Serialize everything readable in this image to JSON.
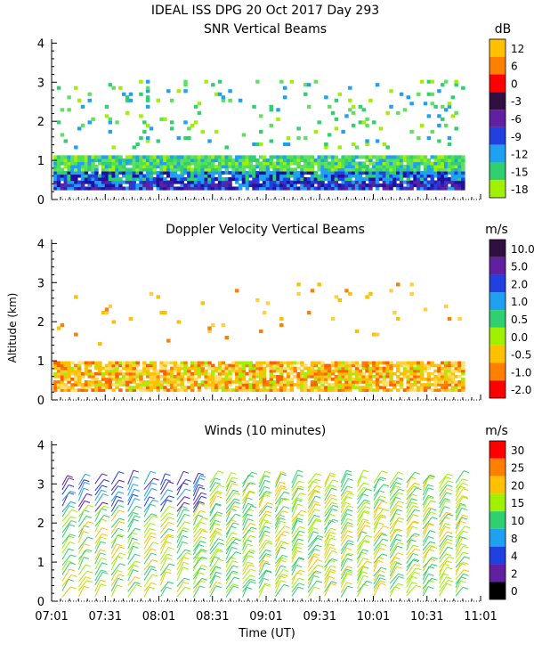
{
  "header": {
    "title": "IDEAL ISS DPG  20 Oct 2017 Day 293"
  },
  "x_axis": {
    "label": "Time (UT)",
    "ticks": [
      "07:01",
      "07:31",
      "08:01",
      "08:31",
      "09:01",
      "09:31",
      "10:01",
      "10:31",
      "11:01"
    ]
  },
  "chart_data": [
    {
      "type": "heatmap",
      "id": "snr",
      "title": "SNR Vertical Beams",
      "ylabel": "",
      "yticks": [
        "0",
        "1",
        "2",
        "3",
        "4"
      ],
      "ylim": [
        0,
        4.1
      ],
      "unit": "dB",
      "colorbar": {
        "labels": [
          "12",
          "6",
          "0",
          "-3",
          "-6",
          "-9",
          "-12",
          "-15",
          "-18"
        ],
        "colors": [
          "#ffc000",
          "#ff8000",
          "#ff0000",
          "#301040",
          "#6020a0",
          "#2040e0",
          "#20a0f0",
          "#30d070",
          "#a0f000"
        ]
      },
      "bands": [
        {
          "from_km": 0.22,
          "to_km": 0.45,
          "dominant": "#2010a0"
        },
        {
          "from_km": 0.45,
          "to_km": 0.72,
          "dominant": "#30a0f0"
        },
        {
          "from_km": 0.72,
          "to_km": 1.05,
          "dominant": "#50e050"
        },
        {
          "from_km": 1.4,
          "to_km": 3.0,
          "dominant": "#90f020"
        }
      ]
    },
    {
      "type": "heatmap",
      "id": "doppler",
      "title": "Doppler Velocity Vertical Beams",
      "ylabel": "Altitude (km)",
      "yticks": [
        "0",
        "1",
        "2",
        "3",
        "4"
      ],
      "ylim": [
        0,
        4.1
      ],
      "unit": "m/s",
      "colorbar": {
        "labels": [
          "10.0",
          "5.0",
          "2.0",
          "1.0",
          "0.5",
          "0.0",
          "-0.5",
          "-1.0",
          "-2.0"
        ],
        "colors": [
          "#301040",
          "#6020a0",
          "#2040e0",
          "#20a0f0",
          "#30d070",
          "#a0f000",
          "#ffc000",
          "#ff8000",
          "#ff0000"
        ]
      },
      "bands": [
        {
          "from_km": 0.2,
          "to_km": 1.0,
          "dominant": "#ffc000"
        }
      ]
    },
    {
      "type": "scatter",
      "id": "winds",
      "title": "Winds (10 minutes)",
      "ylabel": "",
      "yticks": [
        "0",
        "1",
        "2",
        "3",
        "4"
      ],
      "ylim": [
        0,
        4.1
      ],
      "unit": "m/s",
      "colorbar": {
        "labels": [
          "30",
          "25",
          "20",
          "15",
          "10",
          "8",
          "4",
          "2",
          "0"
        ],
        "colors": [
          "#ff0000",
          "#ff8000",
          "#ffc000",
          "#a0f000",
          "#30d070",
          "#20a0f0",
          "#2040e0",
          "#6020a0",
          "#000000"
        ]
      },
      "barb_columns": 25,
      "altitude_range_km": [
        0.1,
        3.1
      ]
    }
  ]
}
